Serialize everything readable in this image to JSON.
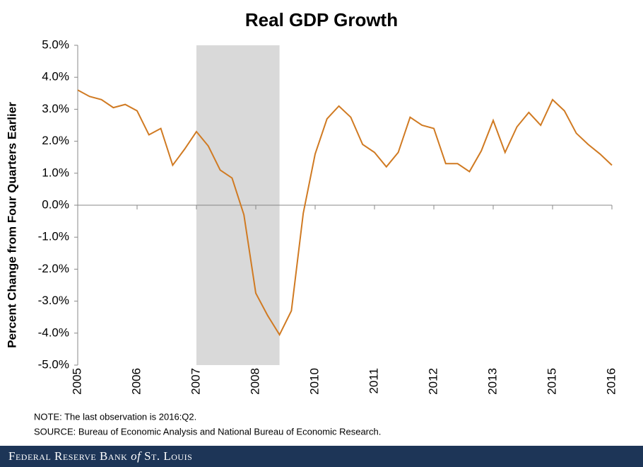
{
  "chart_data": {
    "type": "line",
    "title": "Real GDP Growth",
    "y_label": "Percent Change from Four Quarters Earlier",
    "categories": [
      "2005",
      null,
      null,
      null,
      null,
      "2006",
      null,
      null,
      null,
      null,
      "2007",
      null,
      null,
      null,
      null,
      "2008",
      null,
      null,
      null,
      null,
      "2010",
      null,
      null,
      null,
      null,
      "2011",
      null,
      null,
      null,
      null,
      "2012",
      null,
      null,
      null,
      null,
      "2013",
      null,
      null,
      null,
      null,
      "2015",
      null,
      null,
      null,
      null,
      "2016"
    ],
    "series": [
      {
        "name": "Real GDP Growth",
        "color": "#d07a22",
        "values": [
          3.6,
          3.4,
          3.3,
          3.05,
          3.15,
          2.95,
          2.2,
          2.4,
          1.25,
          1.75,
          2.3,
          1.85,
          1.1,
          0.85,
          -0.3,
          -2.75,
          -3.45,
          -4.05,
          -3.3,
          -0.25,
          1.6,
          2.7,
          3.1,
          2.75,
          1.9,
          1.65,
          1.2,
          1.65,
          2.75,
          2.5,
          2.4,
          1.3,
          1.3,
          1.05,
          1.7,
          2.65,
          1.65,
          2.45,
          2.9,
          2.5,
          3.3,
          2.95,
          2.25,
          1.9,
          1.6,
          1.25
        ]
      }
    ],
    "shaded_range": [
      10,
      17
    ],
    "shade_color": "#d9d9d9",
    "ylim": [
      -5,
      5
    ],
    "yticks": [
      {
        "value": -5,
        "label": "-5.0%"
      },
      {
        "value": -4,
        "label": "-4.0%"
      },
      {
        "value": -3,
        "label": "-3.0%"
      },
      {
        "value": -2,
        "label": "-2.0%"
      },
      {
        "value": -1,
        "label": "-1.0%"
      },
      {
        "value": 0,
        "label": "0.0%"
      },
      {
        "value": 1,
        "label": "1.0%"
      },
      {
        "value": 2,
        "label": "2.0%"
      },
      {
        "value": 3,
        "label": "3.0%"
      },
      {
        "value": 4,
        "label": "4.0%"
      },
      {
        "value": 5,
        "label": "5.0%"
      }
    ],
    "note": "NOTE: The last observation is 2016:Q2.",
    "source": "SOURCE: Bureau of Economic Analysis and National Bureau of Economic Research."
  },
  "footer": {
    "bank": "Federal Reserve Bank",
    "of": "of",
    "city": "St. Louis"
  }
}
